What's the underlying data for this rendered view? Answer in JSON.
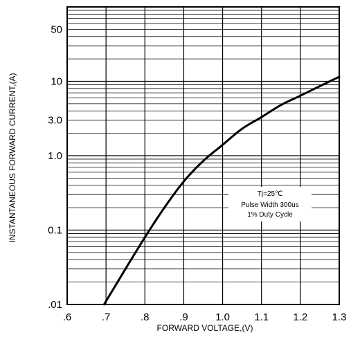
{
  "chart_data": {
    "type": "line",
    "xlabel": "FORWARD VOLTAGE,(V)",
    "ylabel": "INSTANTANEOUS FORWARD CURRENT,(A)",
    "y_scale": "log",
    "xlim": [
      0.6,
      1.3
    ],
    "ylim": [
      0.01,
      100
    ],
    "grid": true,
    "x_ticks": [
      ".6",
      ".7",
      ".8",
      ".9",
      "1.0",
      "1.1",
      "1.2",
      "1.3"
    ],
    "y_ticks": [
      {
        "value": 0.01,
        "label": ".01"
      },
      {
        "value": 0.1,
        "label": "0.1"
      },
      {
        "value": 1,
        "label": "1.0"
      },
      {
        "value": 3,
        "label": "3.0"
      },
      {
        "value": 10,
        "label": "10"
      },
      {
        "value": 50,
        "label": "50"
      }
    ],
    "annotations": [
      "Tj=25℃",
      "Pulse Width 300us",
      "1% Duty Cycle"
    ],
    "series": [
      {
        "color": "#000000",
        "x": [
          0.695,
          0.75,
          0.8,
          0.85,
          0.9,
          0.95,
          1.0,
          1.05,
          1.1,
          1.15,
          1.2,
          1.25,
          1.3
        ],
        "y": [
          0.01,
          0.03,
          0.08,
          0.2,
          0.45,
          0.85,
          1.4,
          2.3,
          3.3,
          4.8,
          6.4,
          8.6,
          11.5
        ]
      }
    ]
  }
}
